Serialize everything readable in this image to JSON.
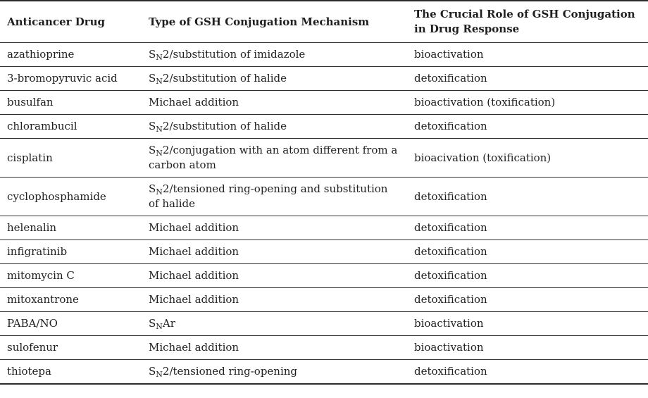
{
  "table": {
    "headers": [
      "Anticancer Drug",
      "Type of GSH Conjugation Mechanism",
      "The Crucial Role of GSH Conjugation in Drug Response"
    ],
    "rows": [
      {
        "drug": "azathioprine",
        "mechanism": {
          "pre": "S",
          "sub": "N",
          "post": "2/substitution of imidazole"
        },
        "role": "bioactivation"
      },
      {
        "drug": "3-bromopyruvic acid",
        "mechanism": {
          "pre": "S",
          "sub": "N",
          "post": "2/substitution of halide"
        },
        "role": "detoxification"
      },
      {
        "drug": "busulfan",
        "mechanism": {
          "pre": "Michael addition",
          "sub": "",
          "post": ""
        },
        "role": "bioactivation (toxification)"
      },
      {
        "drug": "chlorambucil",
        "mechanism": {
          "pre": "S",
          "sub": "N",
          "post": "2/substitution of halide"
        },
        "role": "detoxification"
      },
      {
        "drug": "cisplatin",
        "mechanism": {
          "pre": "S",
          "sub": "N",
          "post": "2/conjugation with an atom different from a carbon atom"
        },
        "role": "bioacivation (toxification)"
      },
      {
        "drug": "cyclophosphamide",
        "mechanism": {
          "pre": "S",
          "sub": "N",
          "post": "2/tensioned ring-opening and substitution of halide"
        },
        "role": "detoxification"
      },
      {
        "drug": "helenalin",
        "mechanism": {
          "pre": "Michael addition",
          "sub": "",
          "post": ""
        },
        "role": "detoxification"
      },
      {
        "drug": "infigratinib",
        "mechanism": {
          "pre": "Michael addition",
          "sub": "",
          "post": ""
        },
        "role": "detoxification"
      },
      {
        "drug": "mitomycin C",
        "mechanism": {
          "pre": "Michael addition",
          "sub": "",
          "post": ""
        },
        "role": "detoxification"
      },
      {
        "drug": "mitoxantrone",
        "mechanism": {
          "pre": "Michael addition",
          "sub": "",
          "post": ""
        },
        "role": "detoxification"
      },
      {
        "drug": "PABA/NO",
        "mechanism": {
          "pre": "S",
          "sub": "N",
          "post": "Ar"
        },
        "role": "bioactivation"
      },
      {
        "drug": "sulofenur",
        "mechanism": {
          "pre": "Michael addition",
          "sub": "",
          "post": ""
        },
        "role": "bioactivation"
      },
      {
        "drug": "thiotepa",
        "mechanism": {
          "pre": "S",
          "sub": "N",
          "post": "2/tensioned ring-opening"
        },
        "role": "detoxification"
      }
    ]
  }
}
